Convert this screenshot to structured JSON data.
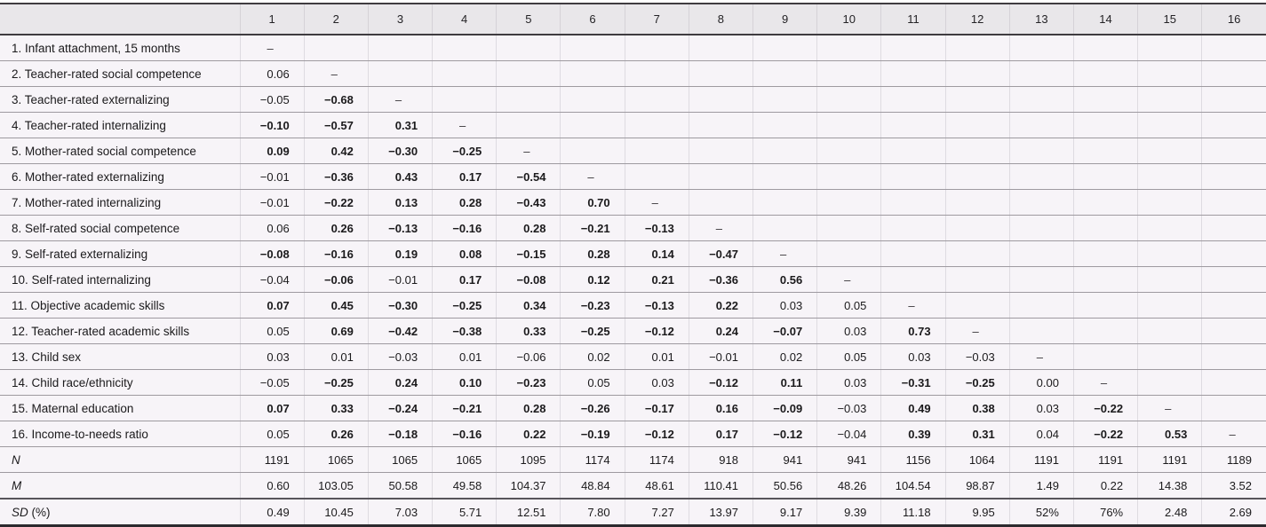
{
  "colors": {
    "header_bg": "#e9e7ea",
    "row_bg": "#f7f4f8",
    "heavy_rule": "#3f3c40",
    "row_rule": "#9e9aa0",
    "column_rule": "#dedbe1",
    "text": "#1b1a1c"
  },
  "table": {
    "col_headers": [
      "1",
      "2",
      "3",
      "4",
      "5",
      "6",
      "7",
      "8",
      "9",
      "10",
      "11",
      "12",
      "13",
      "14",
      "15",
      "16"
    ],
    "rows": [
      {
        "label": "1. Infant attachment, 15 months",
        "values": [
          {
            "v": "–"
          }
        ]
      },
      {
        "label": "2. Teacher-rated social competence",
        "values": [
          {
            "v": "0.06"
          },
          {
            "v": "–"
          }
        ]
      },
      {
        "label": "3. Teacher-rated externalizing",
        "values": [
          {
            "v": "−0.05"
          },
          {
            "v": "−0.68",
            "b": true
          },
          {
            "v": "–"
          }
        ]
      },
      {
        "label": "4. Teacher-rated internalizing",
        "values": [
          {
            "v": "−0.10",
            "b": true
          },
          {
            "v": "−0.57",
            "b": true
          },
          {
            "v": "0.31",
            "b": true
          },
          {
            "v": "–"
          }
        ]
      },
      {
        "label": "5. Mother-rated social competence",
        "values": [
          {
            "v": "0.09",
            "b": true
          },
          {
            "v": "0.42",
            "b": true
          },
          {
            "v": "−0.30",
            "b": true
          },
          {
            "v": "−0.25",
            "b": true
          },
          {
            "v": "–"
          }
        ]
      },
      {
        "label": "6. Mother-rated externalizing",
        "values": [
          {
            "v": "−0.01"
          },
          {
            "v": "−0.36",
            "b": true
          },
          {
            "v": "0.43",
            "b": true
          },
          {
            "v": "0.17",
            "b": true
          },
          {
            "v": "−0.54",
            "b": true
          },
          {
            "v": "–"
          }
        ]
      },
      {
        "label": "7. Mother-rated internalizing",
        "values": [
          {
            "v": "−0.01"
          },
          {
            "v": "−0.22",
            "b": true
          },
          {
            "v": "0.13",
            "b": true
          },
          {
            "v": "0.28",
            "b": true
          },
          {
            "v": "−0.43",
            "b": true
          },
          {
            "v": "0.70",
            "b": true
          },
          {
            "v": "–"
          }
        ]
      },
      {
        "label": "8. Self-rated social competence",
        "values": [
          {
            "v": "0.06"
          },
          {
            "v": "0.26",
            "b": true
          },
          {
            "v": "−0.13",
            "b": true
          },
          {
            "v": "−0.16",
            "b": true
          },
          {
            "v": "0.28",
            "b": true
          },
          {
            "v": "−0.21",
            "b": true
          },
          {
            "v": "−0.13",
            "b": true
          },
          {
            "v": "–"
          }
        ]
      },
      {
        "label": "9. Self-rated externalizing",
        "values": [
          {
            "v": "−0.08",
            "b": true
          },
          {
            "v": "−0.16",
            "b": true
          },
          {
            "v": "0.19",
            "b": true
          },
          {
            "v": "0.08",
            "b": true
          },
          {
            "v": "−0.15",
            "b": true
          },
          {
            "v": "0.28",
            "b": true
          },
          {
            "v": "0.14",
            "b": true
          },
          {
            "v": "−0.47",
            "b": true
          },
          {
            "v": "–"
          }
        ]
      },
      {
        "label": "10. Self-rated internalizing",
        "values": [
          {
            "v": "−0.04"
          },
          {
            "v": "−0.06",
            "b": true
          },
          {
            "v": "−0.01"
          },
          {
            "v": "0.17",
            "b": true
          },
          {
            "v": "−0.08",
            "b": true
          },
          {
            "v": "0.12",
            "b": true
          },
          {
            "v": "0.21",
            "b": true
          },
          {
            "v": "−0.36",
            "b": true
          },
          {
            "v": "0.56",
            "b": true
          },
          {
            "v": "–"
          }
        ]
      },
      {
        "label": "11. Objective academic skills",
        "values": [
          {
            "v": "0.07",
            "b": true
          },
          {
            "v": "0.45",
            "b": true
          },
          {
            "v": "−0.30",
            "b": true
          },
          {
            "v": "−0.25",
            "b": true
          },
          {
            "v": "0.34",
            "b": true
          },
          {
            "v": "−0.23",
            "b": true
          },
          {
            "v": "−0.13",
            "b": true
          },
          {
            "v": "0.22",
            "b": true
          },
          {
            "v": "0.03"
          },
          {
            "v": "0.05"
          },
          {
            "v": "–"
          }
        ]
      },
      {
        "label": "12. Teacher-rated academic skills",
        "values": [
          {
            "v": "0.05"
          },
          {
            "v": "0.69",
            "b": true
          },
          {
            "v": "−0.42",
            "b": true
          },
          {
            "v": "−0.38",
            "b": true
          },
          {
            "v": "0.33",
            "b": true
          },
          {
            "v": "−0.25",
            "b": true
          },
          {
            "v": "−0.12",
            "b": true
          },
          {
            "v": "0.24",
            "b": true
          },
          {
            "v": "−0.07",
            "b": true
          },
          {
            "v": "0.03"
          },
          {
            "v": "0.73",
            "b": true
          },
          {
            "v": "–"
          }
        ]
      },
      {
        "label": "13. Child sex",
        "values": [
          {
            "v": "0.03"
          },
          {
            "v": "0.01"
          },
          {
            "v": "−0.03"
          },
          {
            "v": "0.01"
          },
          {
            "v": "−0.06"
          },
          {
            "v": "0.02"
          },
          {
            "v": "0.01"
          },
          {
            "v": "−0.01"
          },
          {
            "v": "0.02"
          },
          {
            "v": "0.05"
          },
          {
            "v": "0.03"
          },
          {
            "v": "−0.03"
          },
          {
            "v": "–"
          }
        ]
      },
      {
        "label": "14. Child race/ethnicity",
        "values": [
          {
            "v": "−0.05"
          },
          {
            "v": "−0.25",
            "b": true
          },
          {
            "v": "0.24",
            "b": true
          },
          {
            "v": "0.10",
            "b": true
          },
          {
            "v": "−0.23",
            "b": true
          },
          {
            "v": "0.05"
          },
          {
            "v": "0.03"
          },
          {
            "v": "−0.12",
            "b": true
          },
          {
            "v": "0.11",
            "b": true
          },
          {
            "v": "0.03"
          },
          {
            "v": "−0.31",
            "b": true
          },
          {
            "v": "−0.25",
            "b": true
          },
          {
            "v": "0.00"
          },
          {
            "v": "–"
          }
        ]
      },
      {
        "label": "15. Maternal education",
        "values": [
          {
            "v": "0.07",
            "b": true
          },
          {
            "v": "0.33",
            "b": true
          },
          {
            "v": "−0.24",
            "b": true
          },
          {
            "v": "−0.21",
            "b": true
          },
          {
            "v": "0.28",
            "b": true
          },
          {
            "v": "−0.26",
            "b": true
          },
          {
            "v": "−0.17",
            "b": true
          },
          {
            "v": "0.16",
            "b": true
          },
          {
            "v": "−0.09",
            "b": true
          },
          {
            "v": "−0.03"
          },
          {
            "v": "0.49",
            "b": true
          },
          {
            "v": "0.38",
            "b": true
          },
          {
            "v": "0.03"
          },
          {
            "v": "−0.22",
            "b": true
          },
          {
            "v": "–"
          }
        ]
      },
      {
        "label": "16. Income-to-needs ratio",
        "values": [
          {
            "v": "0.05"
          },
          {
            "v": "0.26",
            "b": true
          },
          {
            "v": "−0.18",
            "b": true
          },
          {
            "v": "−0.16",
            "b": true
          },
          {
            "v": "0.22",
            "b": true
          },
          {
            "v": "−0.19",
            "b": true
          },
          {
            "v": "−0.12",
            "b": true
          },
          {
            "v": "0.17",
            "b": true
          },
          {
            "v": "−0.12",
            "b": true
          },
          {
            "v": "−0.04"
          },
          {
            "v": "0.39",
            "b": true
          },
          {
            "v": "0.31",
            "b": true
          },
          {
            "v": "0.04"
          },
          {
            "v": "−0.22",
            "b": true
          },
          {
            "v": "0.53",
            "b": true
          },
          {
            "v": "–"
          }
        ]
      }
    ],
    "summary_rows": [
      {
        "label": "N",
        "suffix": "",
        "values": [
          "1191",
          "1065",
          "1065",
          "1065",
          "1095",
          "1174",
          "1174",
          "918",
          "941",
          "941",
          "1156",
          "1064",
          "1191",
          "1191",
          "1191",
          "1189"
        ]
      },
      {
        "label": "M",
        "suffix": "",
        "values": [
          "0.60",
          "103.05",
          "50.58",
          "49.58",
          "104.37",
          "48.84",
          "48.61",
          "110.41",
          "50.56",
          "48.26",
          "104.54",
          "98.87",
          "1.49",
          "0.22",
          "14.38",
          "3.52"
        ]
      },
      {
        "label": "SD",
        "suffix": " (%)",
        "values": [
          "0.49",
          "10.45",
          "7.03",
          "5.71",
          "12.51",
          "7.80",
          "7.27",
          "13.97",
          "9.17",
          "9.39",
          "11.18",
          "9.95",
          "52%",
          "76%",
          "2.48",
          "2.69"
        ]
      }
    ]
  }
}
